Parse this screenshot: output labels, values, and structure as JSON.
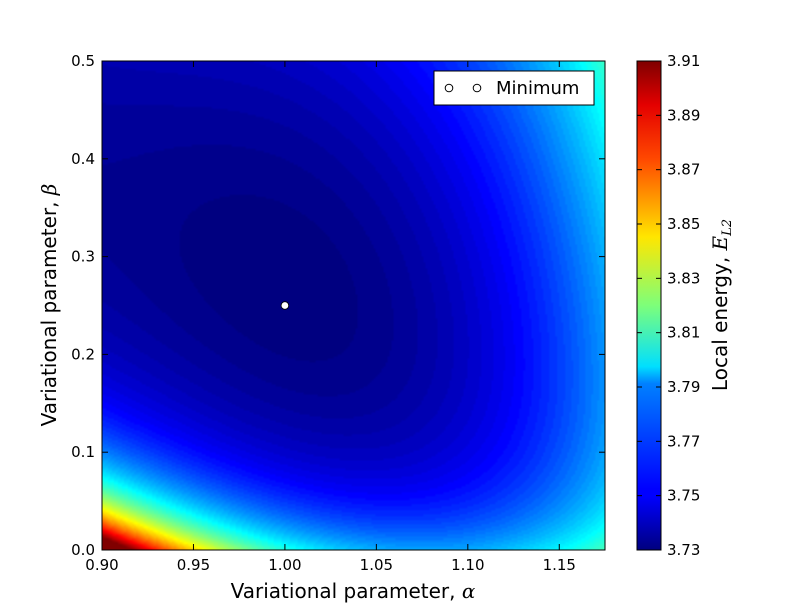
{
  "chart_data": {
    "type": "heatmap",
    "title": "",
    "xlabel": "Variational parameter, ",
    "xlabel_symbol": "α",
    "ylabel": "Variational parameter, ",
    "ylabel_symbol": "β",
    "colorbar_label": "Local energy, ",
    "colorbar_symbol": "E",
    "colorbar_symbol_sub": "L2",
    "xlim": [
      0.9,
      1.175
    ],
    "ylim": [
      0.0,
      0.5
    ],
    "x_ticks": [
      "0.90",
      "0.95",
      "1.00",
      "1.05",
      "1.10",
      "1.15"
    ],
    "y_ticks": [
      "0.0",
      "0.1",
      "0.2",
      "0.3",
      "0.4",
      "0.5"
    ],
    "colorbar_range": [
      3.73,
      3.91
    ],
    "colorbar_ticks": [
      "3.73",
      "3.75",
      "3.77",
      "3.79",
      "3.81",
      "3.83",
      "3.85",
      "3.87",
      "3.89",
      "3.91"
    ],
    "colormap": "jet",
    "surface_samples": [
      {
        "x": 0.9,
        "y": 0.0,
        "z": 3.91
      },
      {
        "x": 0.95,
        "y": 0.0,
        "z": 3.83
      },
      {
        "x": 1.0,
        "y": 0.0,
        "z": 3.79
      },
      {
        "x": 1.1,
        "y": 0.0,
        "z": 3.77
      },
      {
        "x": 0.9,
        "y": 0.1,
        "z": 3.8
      },
      {
        "x": 1.0,
        "y": 0.1,
        "z": 3.745
      },
      {
        "x": 1.0,
        "y": 0.25,
        "z": 3.73
      },
      {
        "x": 1.1,
        "y": 0.25,
        "z": 3.745
      },
      {
        "x": 1.175,
        "y": 0.5,
        "z": 3.79
      },
      {
        "x": 0.9,
        "y": 0.5,
        "z": 3.745
      }
    ],
    "series": [
      {
        "name": "Minimum",
        "type": "scatter",
        "points": [
          {
            "x": 1.0,
            "y": 0.25
          }
        ]
      }
    ],
    "legend": {
      "position": "upper right",
      "entries": [
        "Minimum"
      ]
    },
    "grid": false
  }
}
